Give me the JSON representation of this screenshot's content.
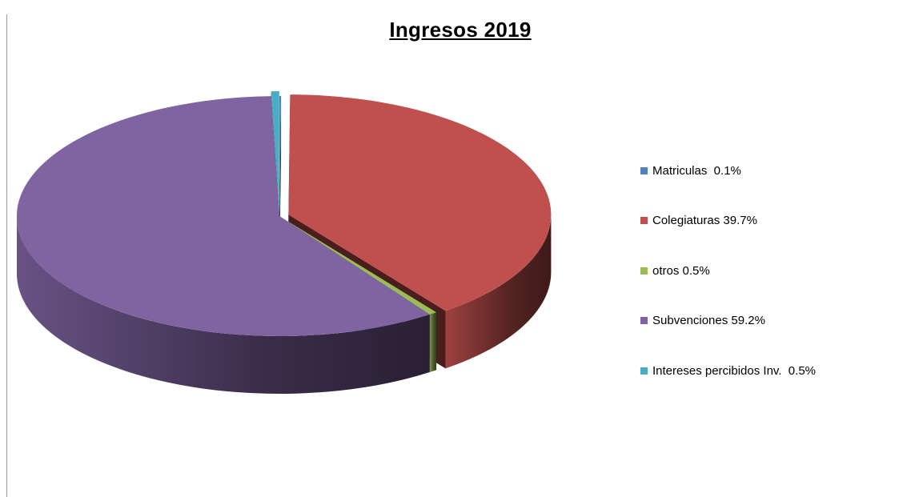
{
  "chart_data": {
    "type": "pie",
    "title": "Ingresos 2019",
    "three_d": true,
    "legend_position": "right",
    "slices": [
      {
        "name": "Matriculas  0.1%",
        "value": 0.1,
        "color": "#4F81BD",
        "exploded": false
      },
      {
        "name": "Colegiaturas 39.7%",
        "value": 39.7,
        "color": "#C0504D",
        "exploded": true
      },
      {
        "name": "otros 0.5%",
        "value": 0.5,
        "color": "#9BBB59",
        "exploded": false
      },
      {
        "name": "Subvenciones 59.2%",
        "value": 59.2,
        "color": "#8064A2",
        "exploded": false
      },
      {
        "name": "Intereses percibidos Inv.  0.5%",
        "value": 0.5,
        "color": "#4BACC6",
        "exploded": true
      }
    ]
  }
}
